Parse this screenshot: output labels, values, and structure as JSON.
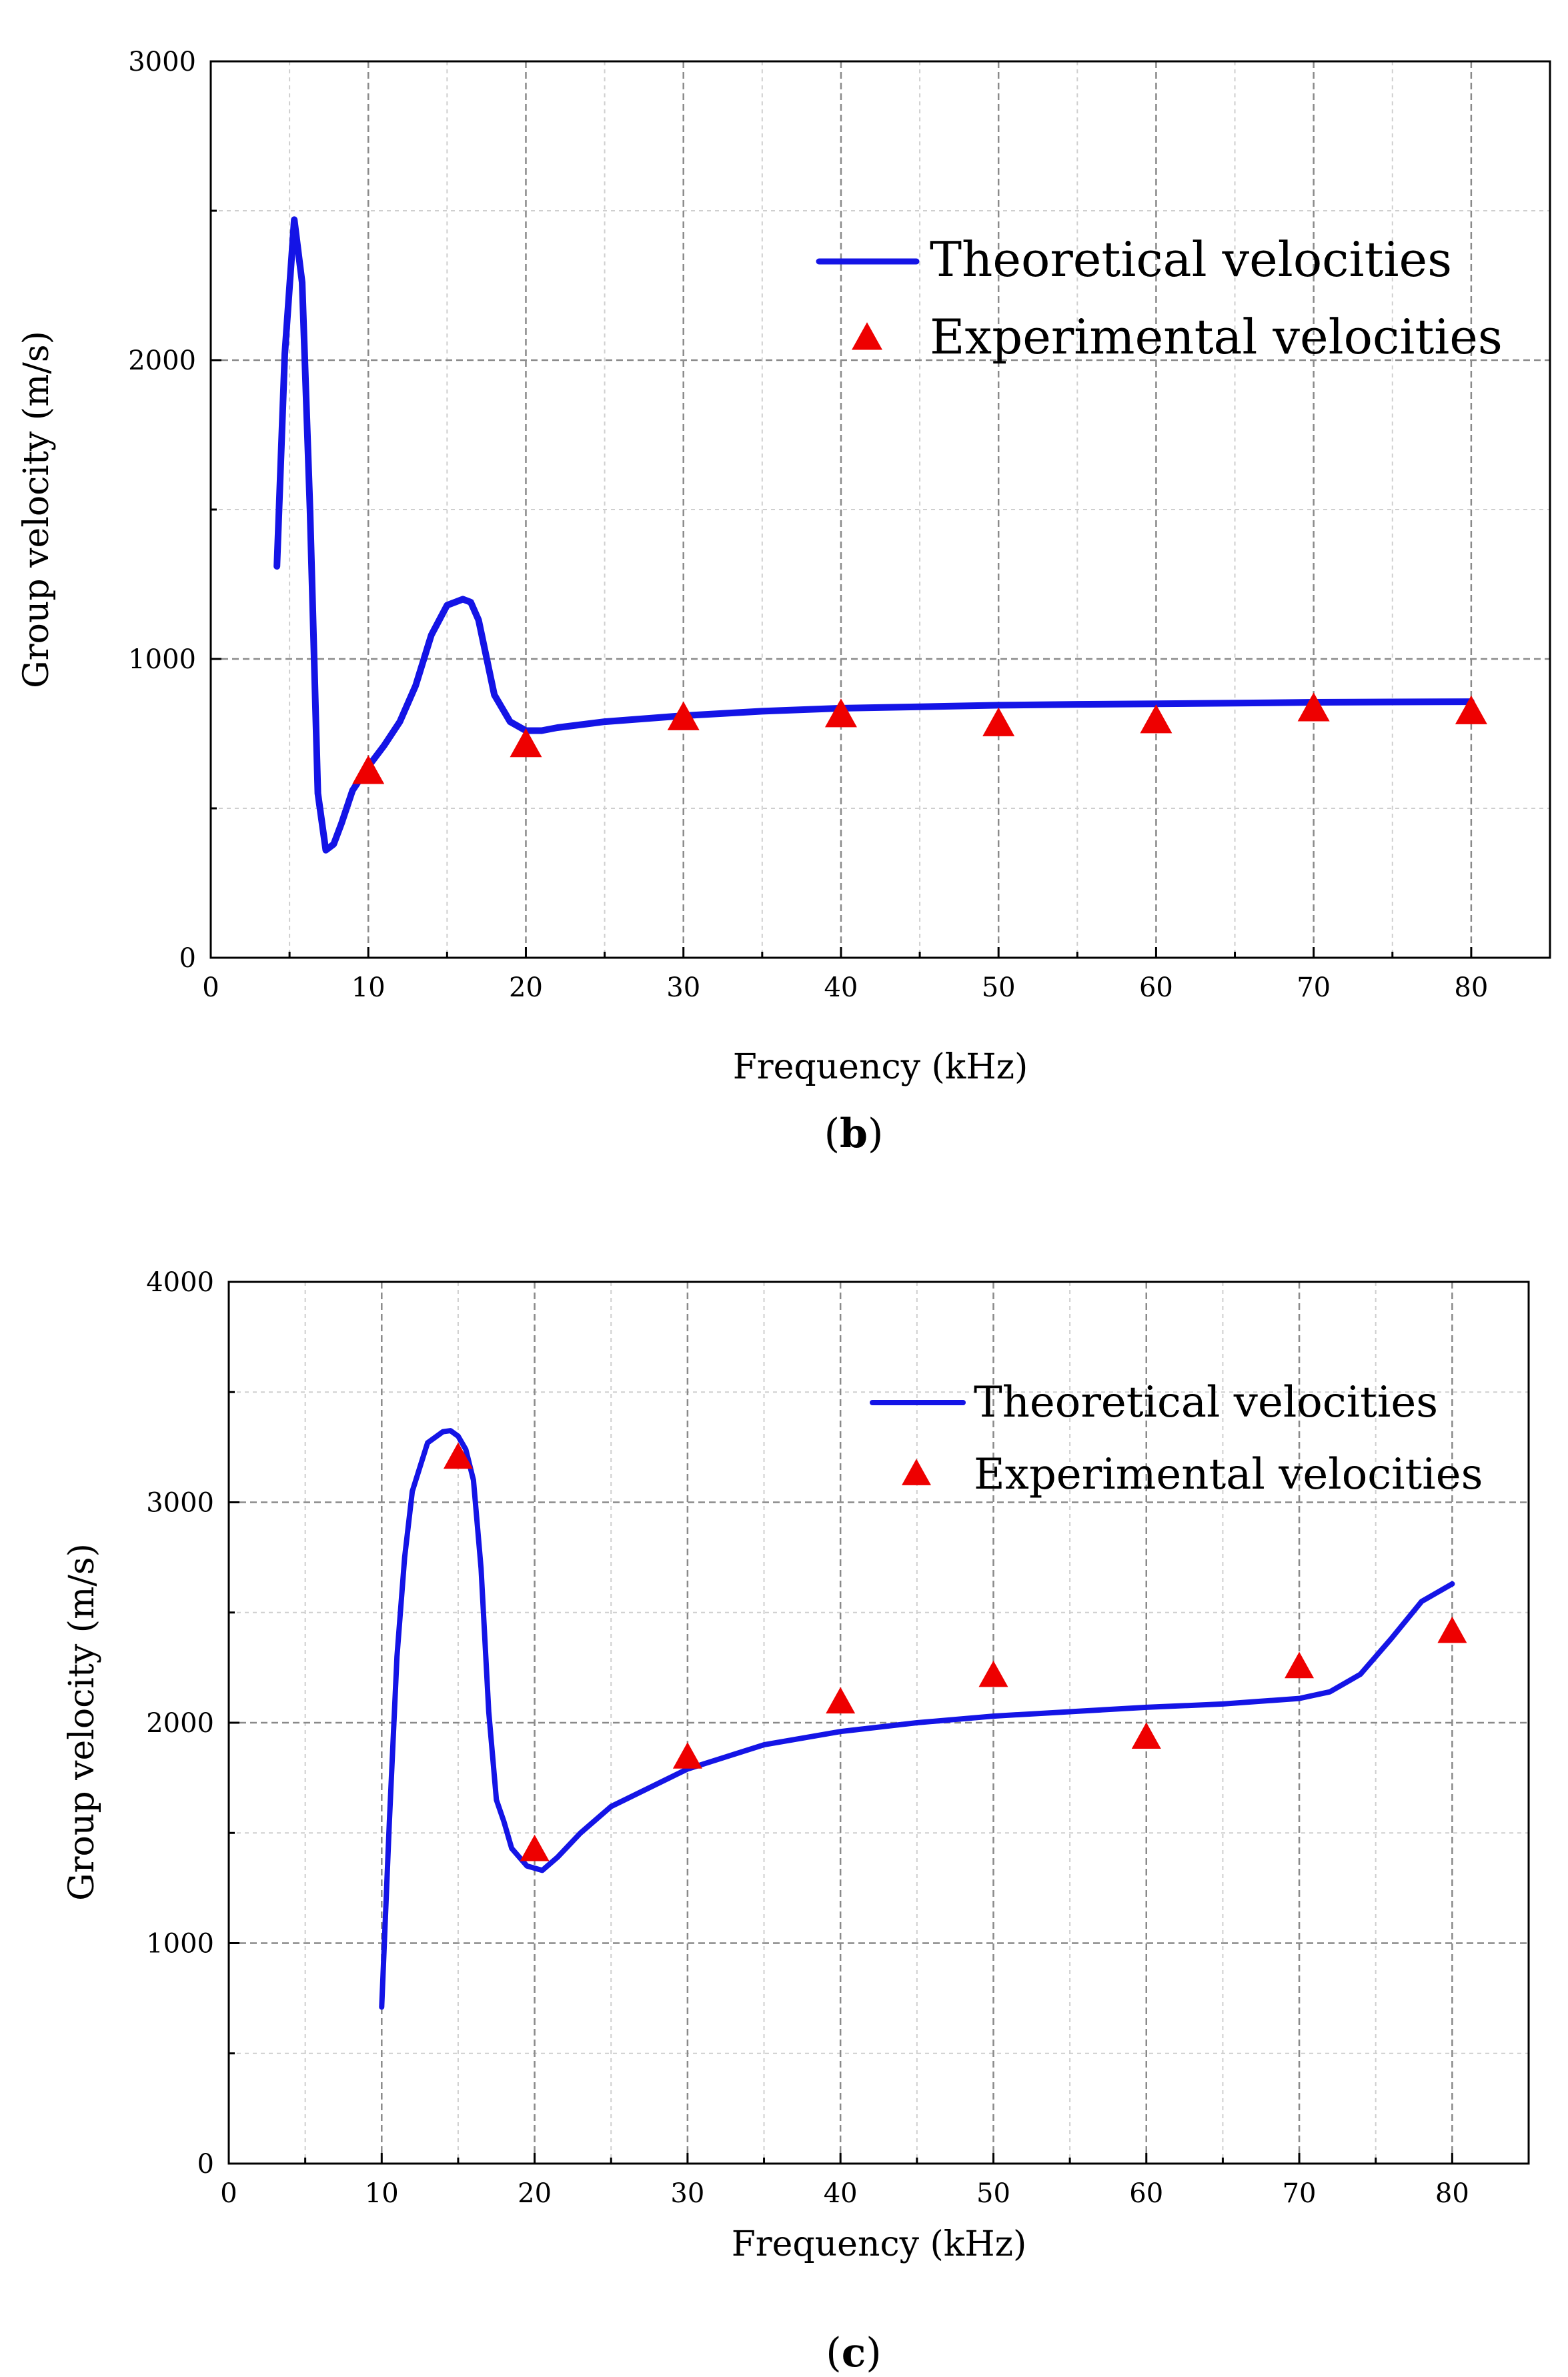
{
  "colors": {
    "theory": "#1414e6",
    "experiment": "#ee0000",
    "grid_major": "#8a8a8a",
    "grid_minor": "#cfcfcf"
  },
  "chart_data": [
    {
      "type": "line",
      "panel": "b",
      "caption": "(b)",
      "caption_parts": {
        "open": "(",
        "letter": "b",
        "close": ")"
      },
      "xlabel": "Frequency (kHz)",
      "ylabel": "Group velocity (m/s)",
      "xlim": [
        0,
        85
      ],
      "ylim": [
        0,
        3000
      ],
      "x_ticks": [
        0,
        10,
        20,
        30,
        40,
        50,
        60,
        70,
        80
      ],
      "y_ticks": [
        0,
        1000,
        2000,
        3000
      ],
      "grid": true,
      "legend_position": "top-right",
      "series": [
        {
          "name": "Theoretical velocities",
          "kind": "line",
          "x": [
            4.2,
            4.7,
            5.3,
            5.8,
            6.3,
            6.8,
            7.3,
            7.8,
            8.3,
            9.0,
            10.0,
            11.0,
            12.0,
            13.0,
            14.0,
            15.0,
            16.0,
            16.5,
            17.0,
            18.0,
            19.0,
            20.0,
            21.0,
            22.0,
            25.0,
            30.0,
            35.0,
            40.0,
            45.0,
            50.0,
            55.0,
            60.0,
            65.0,
            70.0,
            75.0,
            80.0
          ],
          "y": [
            1310,
            2020,
            2470,
            2260,
            1500,
            550,
            360,
            380,
            450,
            560,
            640,
            710,
            790,
            910,
            1080,
            1180,
            1200,
            1190,
            1130,
            880,
            790,
            760,
            760,
            770,
            790,
            810,
            825,
            835,
            840,
            845,
            848,
            850,
            852,
            855,
            856,
            857
          ]
        },
        {
          "name": "Experimental velocities",
          "kind": "scatter",
          "marker": "triangle",
          "x": [
            10,
            20,
            30,
            40,
            50,
            60,
            70,
            80
          ],
          "y": [
            620,
            710,
            800,
            810,
            780,
            790,
            830,
            820
          ]
        }
      ]
    },
    {
      "type": "line",
      "panel": "c",
      "caption": "(c)",
      "caption_parts": {
        "open": "(",
        "letter": "c",
        "close": ")"
      },
      "xlabel": "Frequency (kHz)",
      "ylabel": "Group velocity (m/s)",
      "xlim": [
        0,
        85
      ],
      "ylim": [
        0,
        4000
      ],
      "x_ticks": [
        0,
        10,
        20,
        30,
        40,
        50,
        60,
        70,
        80
      ],
      "y_ticks": [
        0,
        1000,
        2000,
        3000,
        4000
      ],
      "grid": true,
      "legend_position": "top-right",
      "series": [
        {
          "name": "Theoretical velocities",
          "kind": "line",
          "x": [
            10.0,
            10.5,
            11.0,
            11.5,
            12.0,
            13.0,
            14.0,
            14.5,
            15.0,
            15.5,
            16.0,
            16.5,
            17.0,
            17.5,
            18.0,
            18.5,
            19.5,
            20.5,
            21.5,
            23.0,
            25.0,
            30.0,
            35.0,
            40.0,
            45.0,
            50.0,
            55.0,
            60.0,
            65.0,
            70.0,
            72.0,
            74.0,
            76.0,
            78.0,
            80.0
          ],
          "y": [
            710,
            1550,
            2300,
            2750,
            3050,
            3270,
            3320,
            3325,
            3300,
            3240,
            3100,
            2700,
            2050,
            1650,
            1550,
            1430,
            1350,
            1330,
            1390,
            1500,
            1620,
            1790,
            1900,
            1960,
            2000,
            2030,
            2050,
            2070,
            2085,
            2110,
            2140,
            2220,
            2380,
            2550,
            2630
          ]
        },
        {
          "name": "Experimental  velocities",
          "kind": "scatter",
          "marker": "triangle",
          "x": [
            15,
            20,
            30,
            40,
            50,
            60,
            70,
            80
          ],
          "y": [
            3200,
            1420,
            1840,
            2090,
            2210,
            1930,
            2250,
            2410
          ]
        }
      ]
    }
  ]
}
